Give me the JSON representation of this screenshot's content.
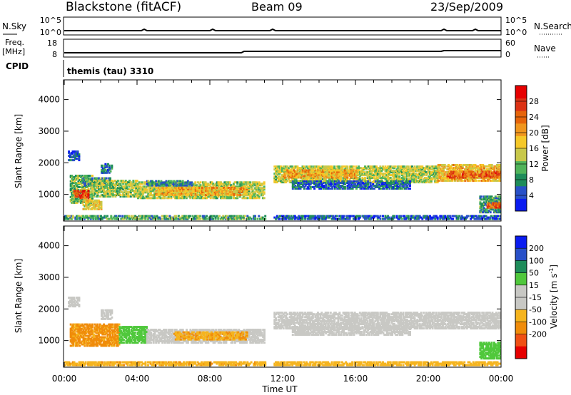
{
  "header": {
    "station": "Blackstone (fitACF)",
    "beam": "Beam 09",
    "date": "23/Sep/2009"
  },
  "strips": {
    "nsky_label": "N.Sky",
    "nsky_ticks": [
      "10^5",
      "10^0"
    ],
    "nsearch_label": "N.Search",
    "nsearch_ticks": [
      "10^5",
      "10^0"
    ],
    "freq_label": "Freq.",
    "freq_unit": "[MHz]",
    "freq_ticks": [
      "18",
      "8"
    ],
    "nave_label": "Nave",
    "nave_ticks": [
      "60",
      "0"
    ],
    "cpid_label": "CPID",
    "cpid_text": "themis (tau) 3310"
  },
  "colors": {
    "power_scale": [
      "#0a1cf0",
      "#2850c8",
      "#1e8c5a",
      "#50b45a",
      "#c8c84a",
      "#f5c828",
      "#f0961e",
      "#e6640a",
      "#dc3214",
      "#e60000"
    ],
    "velocity_scale": [
      "#0a1cf0",
      "#2850c8",
      "#1e8c5a",
      "#50c83c",
      "#c8c8c4",
      "#c8c8c4",
      "#f5b41e",
      "#f08c0a",
      "#f05014",
      "#e60000"
    ]
  },
  "chart_data": [
    {
      "type": "heatmap",
      "name": "power",
      "ylabel": "Slant Range [km]",
      "xlabel": "",
      "x_ticks": [
        "00:00",
        "04:00",
        "08:00",
        "12:00",
        "16:00",
        "20:00",
        "00:00"
      ],
      "x_range_hours": [
        0,
        24
      ],
      "y_ticks": [
        1000,
        2000,
        3000,
        4000
      ],
      "ylim": [
        180,
        4600
      ],
      "colorbar_label": "Power [dB]",
      "colorbar_ticks": [
        4,
        8,
        12,
        16,
        20,
        24,
        28
      ],
      "colorbar_range": [
        0,
        32
      ],
      "regions": [
        {
          "t0": 0.2,
          "t1": 0.8,
          "r0": 2050,
          "r1": 2350,
          "value": 5
        },
        {
          "t0": 0.3,
          "t1": 1.5,
          "r0": 700,
          "r1": 1600,
          "value": 12
        },
        {
          "t0": 0.5,
          "t1": 1.3,
          "r0": 850,
          "r1": 1100,
          "value": 26
        },
        {
          "t0": 1.0,
          "t1": 2.5,
          "r0": 1250,
          "r1": 1500,
          "value": 9
        },
        {
          "t0": 2.0,
          "t1": 2.6,
          "r0": 1650,
          "r1": 1950,
          "value": 7
        },
        {
          "t0": 1.0,
          "t1": 2.0,
          "r0": 500,
          "r1": 800,
          "value": 17
        },
        {
          "t0": 1.5,
          "t1": 4.0,
          "r0": 900,
          "r1": 1400,
          "value": 13
        },
        {
          "t0": 4.0,
          "t1": 11.0,
          "r0": 850,
          "r1": 1350,
          "value": 14
        },
        {
          "t0": 5.0,
          "t1": 10.0,
          "r0": 950,
          "r1": 1200,
          "value": 19
        },
        {
          "t0": 4.5,
          "t1": 7.0,
          "r0": 1250,
          "r1": 1400,
          "value": 8
        },
        {
          "t0": 0.0,
          "t1": 11.0,
          "r0": 190,
          "r1": 300,
          "value": 10
        },
        {
          "t0": 11.5,
          "t1": 20.5,
          "r0": 1350,
          "r1": 1850,
          "value": 14
        },
        {
          "t0": 12.0,
          "t1": 16.0,
          "r0": 1500,
          "r1": 1750,
          "value": 20
        },
        {
          "t0": 12.5,
          "t1": 19.0,
          "r0": 1150,
          "r1": 1400,
          "value": 6
        },
        {
          "t0": 20.5,
          "t1": 24.0,
          "r0": 1400,
          "r1": 1900,
          "value": 18
        },
        {
          "t0": 21.0,
          "t1": 24.0,
          "r0": 1500,
          "r1": 1700,
          "value": 24
        },
        {
          "t0": 22.8,
          "t1": 24.0,
          "r0": 400,
          "r1": 900,
          "value": 9
        },
        {
          "t0": 23.2,
          "t1": 24.0,
          "r0": 550,
          "r1": 700,
          "value": 25
        },
        {
          "t0": 11.5,
          "t1": 24.0,
          "r0": 190,
          "r1": 300,
          "value": 5
        }
      ]
    },
    {
      "type": "heatmap",
      "name": "velocity",
      "ylabel": "Slant Range [km]",
      "xlabel": "Time UT",
      "x_ticks": [
        "00:00",
        "04:00",
        "08:00",
        "12:00",
        "16:00",
        "20:00",
        "00:00"
      ],
      "x_range_hours": [
        0,
        24
      ],
      "y_ticks": [
        1000,
        2000,
        3000,
        4000
      ],
      "ylim": [
        180,
        4600
      ],
      "colorbar_label": "Velocity [m s^-1]",
      "colorbar_ticks": [
        200,
        100,
        50,
        15,
        -15,
        -50,
        -100,
        -200
      ],
      "regions": [
        {
          "t0": 0.2,
          "t1": 0.8,
          "r0": 2050,
          "r1": 2350,
          "value": 0
        },
        {
          "t0": 0.3,
          "t1": 3.0,
          "r0": 800,
          "r1": 1500,
          "value": -60
        },
        {
          "t0": 2.0,
          "t1": 2.6,
          "r0": 1650,
          "r1": 1950,
          "value": 0
        },
        {
          "t0": 3.0,
          "t1": 4.5,
          "r0": 900,
          "r1": 1400,
          "value": 60
        },
        {
          "t0": 4.5,
          "t1": 11.0,
          "r0": 900,
          "r1": 1350,
          "value": 0
        },
        {
          "t0": 6.0,
          "t1": 10.0,
          "r0": 1000,
          "r1": 1250,
          "value": -45
        },
        {
          "t0": 0.0,
          "t1": 11.0,
          "r0": 190,
          "r1": 300,
          "value": -40
        },
        {
          "t0": 11.5,
          "t1": 24.0,
          "r0": 1350,
          "r1": 1850,
          "value": 0
        },
        {
          "t0": 12.5,
          "t1": 19.0,
          "r0": 1150,
          "r1": 1400,
          "value": 0
        },
        {
          "t0": 22.8,
          "t1": 24.0,
          "r0": 400,
          "r1": 900,
          "value": 70
        },
        {
          "t0": 11.5,
          "t1": 24.0,
          "r0": 190,
          "r1": 300,
          "value": -30
        }
      ]
    }
  ]
}
